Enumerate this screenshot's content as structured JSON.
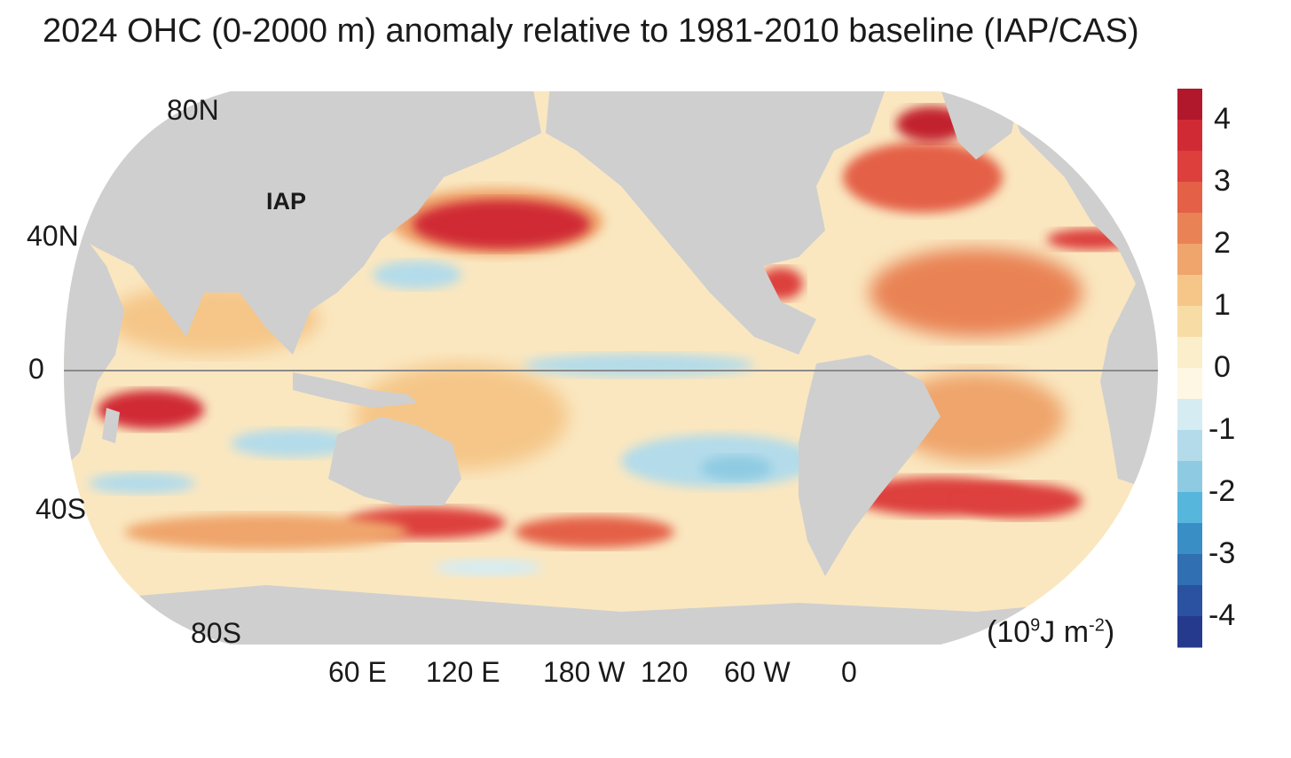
{
  "title": "2024 OHC (0-2000 m) anomaly relative to 1981-2010 baseline (IAP/CAS)",
  "dataset_label": "IAP",
  "lat_labels": [
    "80N",
    "40N",
    "0",
    "40S",
    "80S"
  ],
  "lon_labels": [
    "60 E",
    "120 E",
    "180 W",
    "120",
    "60 W",
    "0"
  ],
  "units": {
    "base": "(10",
    "exp": "9",
    "mid": "J m",
    "exp2": "-2",
    "close": ")"
  },
  "colorbar": {
    "ticks": [
      "4",
      "3",
      "2",
      "1",
      "0",
      "-1",
      "-2",
      "-3",
      "-4"
    ],
    "min": -4.5,
    "max": 4.5,
    "colors": [
      "#b2182b",
      "#d02b34",
      "#dd3f3d",
      "#e46047",
      "#e98355",
      "#efa56c",
      "#f5c688",
      "#f8dca6",
      "#fbeecb",
      "#fdf7e3",
      "#d6ecf3",
      "#b3dbea",
      "#8ecbe2",
      "#56b6dc",
      "#3a8ec6",
      "#2f6fb2",
      "#2a52a0",
      "#253a8c"
    ]
  },
  "colors": {
    "land": "#cfcfcf",
    "ocean_base": "#fae7c0",
    "equator": "#8a8a8a"
  }
}
